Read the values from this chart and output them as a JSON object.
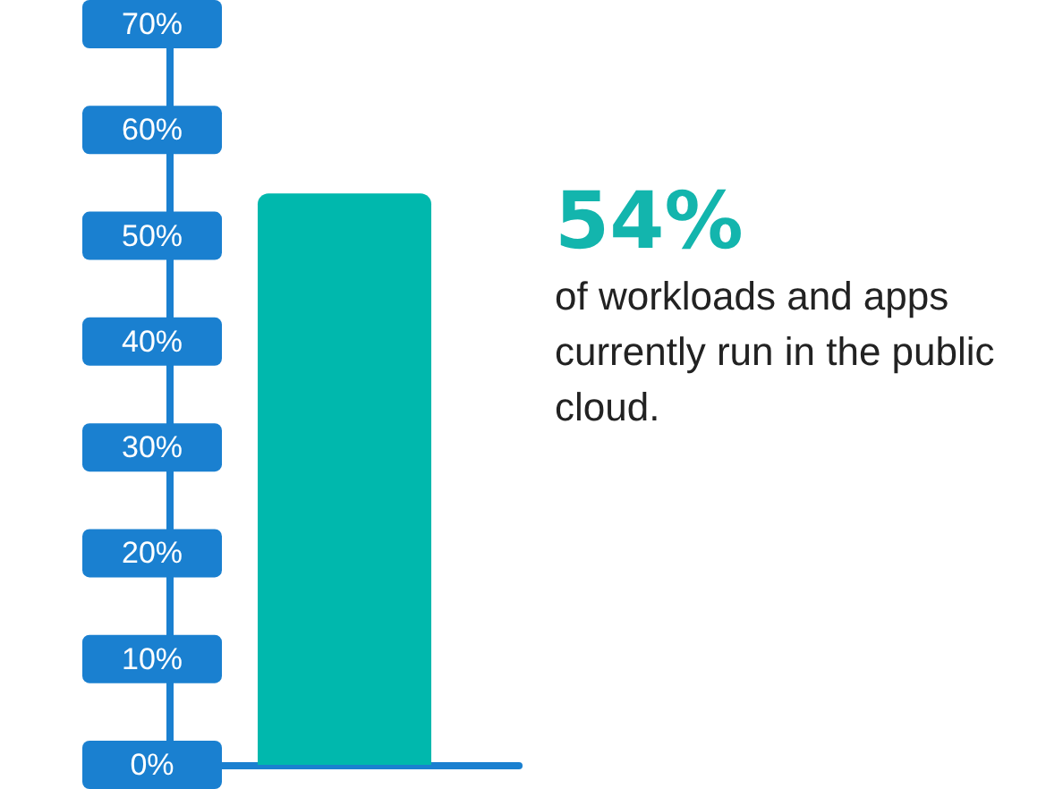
{
  "chart_data": {
    "type": "bar",
    "categories": [
      null
    ],
    "values": [
      54
    ],
    "color": "#00b8ad",
    "ylim": [
      0,
      70
    ],
    "yticks": [
      {
        "value": 0,
        "label": "0%"
      },
      {
        "value": 10,
        "label": "10%"
      },
      {
        "value": 20,
        "label": "20%"
      },
      {
        "value": 30,
        "label": "30%"
      },
      {
        "value": 40,
        "label": "40%"
      },
      {
        "value": 50,
        "label": "50%"
      },
      {
        "value": 60,
        "label": "60%"
      },
      {
        "value": 70,
        "label": "70%"
      }
    ],
    "grid": false,
    "annotations": [
      {
        "text": "54%"
      },
      {
        "text": "of workloads and apps currently run in the public cloud."
      }
    ]
  }
}
